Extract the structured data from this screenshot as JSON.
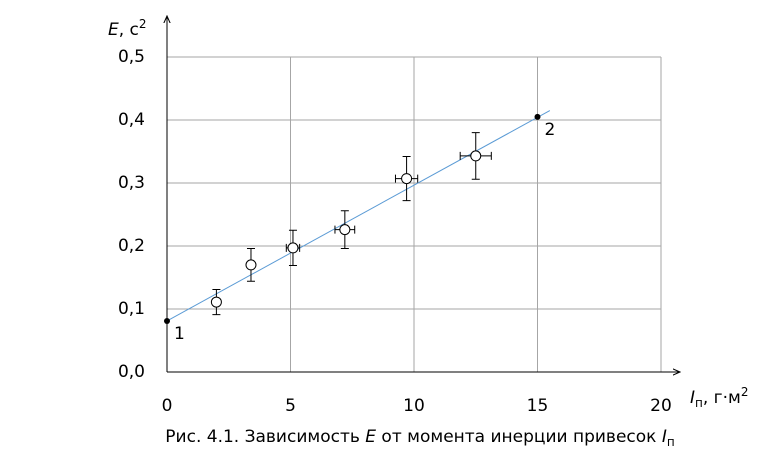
{
  "chart_data": {
    "type": "scatter",
    "ylabel": {
      "symbol": "E",
      "unit": ", с",
      "power": "2"
    },
    "xlabel": {
      "symbol": "I",
      "subscript": "п",
      "unit": ", г·м",
      "power": "2"
    },
    "caption": {
      "text": "Рис. 4.1. Зависимость ",
      "symbol": "E",
      "middle": " от момента инерции привесок ",
      "symbol2": "I",
      "subscript": "п"
    },
    "xlim": [
      0,
      20
    ],
    "xticks": [
      0,
      5,
      10,
      15,
      20
    ],
    "ylim": [
      0,
      0.5
    ],
    "yticks": [
      {
        "value": 0,
        "label": "0,0"
      },
      {
        "value": 0.1,
        "label": "0,1"
      },
      {
        "value": 0.2,
        "label": "0,2"
      },
      {
        "value": 0.3,
        "label": "0,3"
      },
      {
        "value": 0.4,
        "label": "0,4"
      },
      {
        "value": 0.5,
        "label": "0,5"
      }
    ],
    "grid": true,
    "series": [
      {
        "kind": "points",
        "color": "#000000",
        "x": [
          2.0,
          3.4,
          5.1,
          7.2,
          9.7,
          12.5
        ],
        "values": [
          0.111,
          0.17,
          0.197,
          0.226,
          0.307,
          0.343
        ],
        "yerr": [
          0.02,
          0.026,
          0.028,
          0.03,
          0.035,
          0.037
        ],
        "xerr": [
          null,
          null,
          0.27,
          0.4,
          0.45,
          0.63
        ]
      },
      {
        "kind": "anchors",
        "color": "#000000",
        "x": [
          0,
          15
        ],
        "values": [
          0.081,
          0.405
        ],
        "labels": [
          "1",
          "2"
        ]
      },
      {
        "kind": "line",
        "color": "#5b9bd5",
        "x": [
          0,
          15.5
        ],
        "values": [
          0.081,
          0.415
        ]
      }
    ]
  }
}
